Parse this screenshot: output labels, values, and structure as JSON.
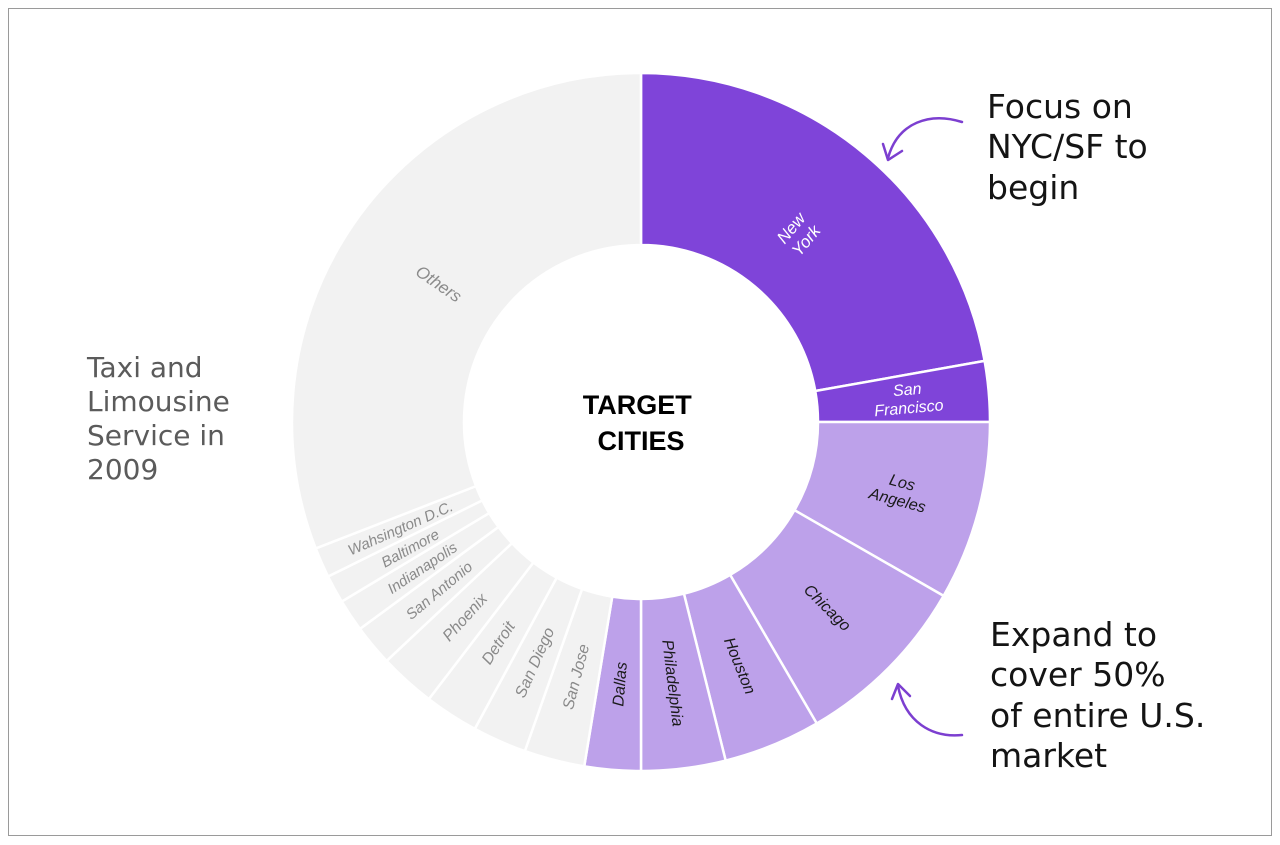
{
  "chart_data": {
    "type": "pie",
    "variant": "donut",
    "center_label": [
      "TARGET",
      "CITIES"
    ],
    "slices": [
      {
        "label": "New York",
        "lines": [
          "New",
          "York"
        ],
        "value": 22.2,
        "color": "#7f44d9",
        "text_color": "#ffffff"
      },
      {
        "label": "San Francisco",
        "lines": [
          "San",
          "Francisco"
        ],
        "value": 2.8,
        "color": "#7f44d9",
        "text_color": "#ffffff"
      },
      {
        "label": "Los Angeles",
        "lines": [
          "Los",
          "Angeles"
        ],
        "value": 8.3,
        "color": "#bda1ea",
        "text_color": "#1a1a1a"
      },
      {
        "label": "Chicago",
        "lines": [
          "Chicago"
        ],
        "value": 8.3,
        "color": "#bda1ea",
        "text_color": "#1a1a1a"
      },
      {
        "label": "Houston",
        "lines": [
          "Houston"
        ],
        "value": 4.5,
        "color": "#bda1ea",
        "text_color": "#1a1a1a"
      },
      {
        "label": "Philadelphia",
        "lines": [
          "Philadelphia"
        ],
        "value": 3.9,
        "color": "#bda1ea",
        "text_color": "#1a1a1a"
      },
      {
        "label": "Dallas",
        "lines": [
          "Dallas"
        ],
        "value": 2.6,
        "color": "#bda1ea",
        "text_color": "#1a1a1a"
      },
      {
        "label": "San Jose",
        "lines": [
          "San Jose"
        ],
        "value": 2.8,
        "color": "#f2f2f2",
        "text_color": "#8a8a8a"
      },
      {
        "label": "San Diego",
        "lines": [
          "San Diego"
        ],
        "value": 2.5,
        "color": "#f2f2f2",
        "text_color": "#8a8a8a"
      },
      {
        "label": "Detroit",
        "lines": [
          "Detroit"
        ],
        "value": 2.5,
        "color": "#f2f2f2",
        "text_color": "#8a8a8a"
      },
      {
        "label": "Phoenix",
        "lines": [
          "Phoenix"
        ],
        "value": 2.6,
        "color": "#f2f2f2",
        "text_color": "#8a8a8a"
      },
      {
        "label": "San Antonio",
        "lines": [
          "San Antonio"
        ],
        "value": 1.9,
        "color": "#f2f2f2",
        "text_color": "#8a8a8a"
      },
      {
        "label": "Indianapolis",
        "lines": [
          "Indianapolis"
        ],
        "value": 1.5,
        "color": "#f2f2f2",
        "text_color": "#8a8a8a"
      },
      {
        "label": "Baltimore",
        "lines": [
          "Baltimore"
        ],
        "value": 1.3,
        "color": "#f2f2f2",
        "text_color": "#8a8a8a"
      },
      {
        "label": "Wahsington D.C.",
        "lines": [
          "Wahsington D.C."
        ],
        "value": 1.4,
        "color": "#f2f2f2",
        "text_color": "#8a8a8a"
      },
      {
        "label": "Others",
        "lines": [
          "Others"
        ],
        "value": 30.9,
        "color": "#f2f2f2",
        "text_color": "#8a8a8a"
      }
    ]
  },
  "left_note": [
    "Taxi and",
    "Limousine",
    "Service in",
    "2009"
  ],
  "annotation_top": [
    "Focus on",
    "NYC/SF to",
    "begin"
  ],
  "annotation_bottom": [
    "Expand to",
    "cover 50%",
    "of entire U.S.",
    "market"
  ],
  "colors": {
    "accent": "#7f44d9",
    "accent_light": "#bda1ea",
    "neutral": "#f2f2f2",
    "arrow": "#7c3fd0"
  }
}
